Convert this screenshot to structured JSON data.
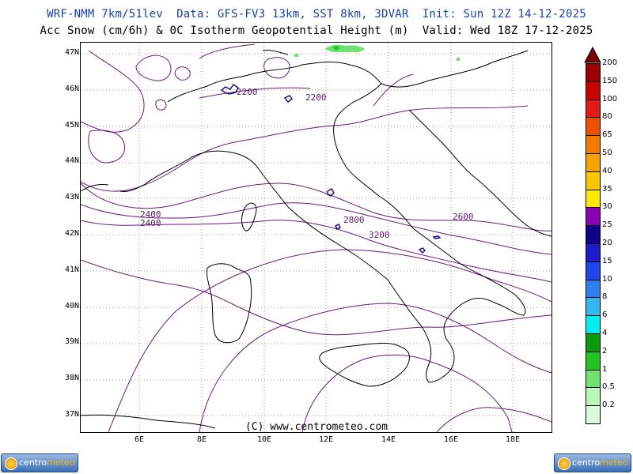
{
  "header": {
    "line1": "WRF-NMM 7km/51lev  Data: GFS-FV3 13km, SST 8km, 3DVAR  Init: Sun 12Z 14-12-2025",
    "line2": "Acc Snow (cm/6h) & 0C Isotherm Geopotential Height (m)  Valid: Wed 18Z 17-12-2025"
  },
  "axes": {
    "lat_labels": [
      "47N",
      "46N",
      "45N",
      "44N",
      "43N",
      "42N",
      "41N",
      "40N",
      "39N",
      "38N",
      "37N"
    ],
    "lon_labels": [
      "6E",
      "8E",
      "10E",
      "12E",
      "14E",
      "16E",
      "18E"
    ]
  },
  "contours": {
    "labels": [
      "2200",
      "2200",
      "2400",
      "2400",
      "2600",
      "2800",
      "3200"
    ]
  },
  "credit": "(C) www.centrometeo.com",
  "legend": {
    "levels": [
      "200",
      "150",
      "100",
      "80",
      "65",
      "50",
      "40",
      "35",
      "30",
      "25",
      "20",
      "15",
      "10",
      "8",
      "6",
      "4",
      "2",
      "1",
      "0.5",
      "0.2"
    ],
    "colors": [
      "#7a0000",
      "#9a0000",
      "#c80000",
      "#e21a1a",
      "#ef5000",
      "#f37b00",
      "#f5a300",
      "#f7c600",
      "#ffe800",
      "#8a00b8",
      "#12008a",
      "#1c1cc8",
      "#1f46e8",
      "#2f7ef0",
      "#33b8ee",
      "#00eef0",
      "#0a9a0a",
      "#22c322",
      "#6fe26f",
      "#b9f7b9",
      "#ddfadd"
    ]
  },
  "logo": {
    "left_text_a": "centro",
    "left_text_b": "meteo"
  }
}
